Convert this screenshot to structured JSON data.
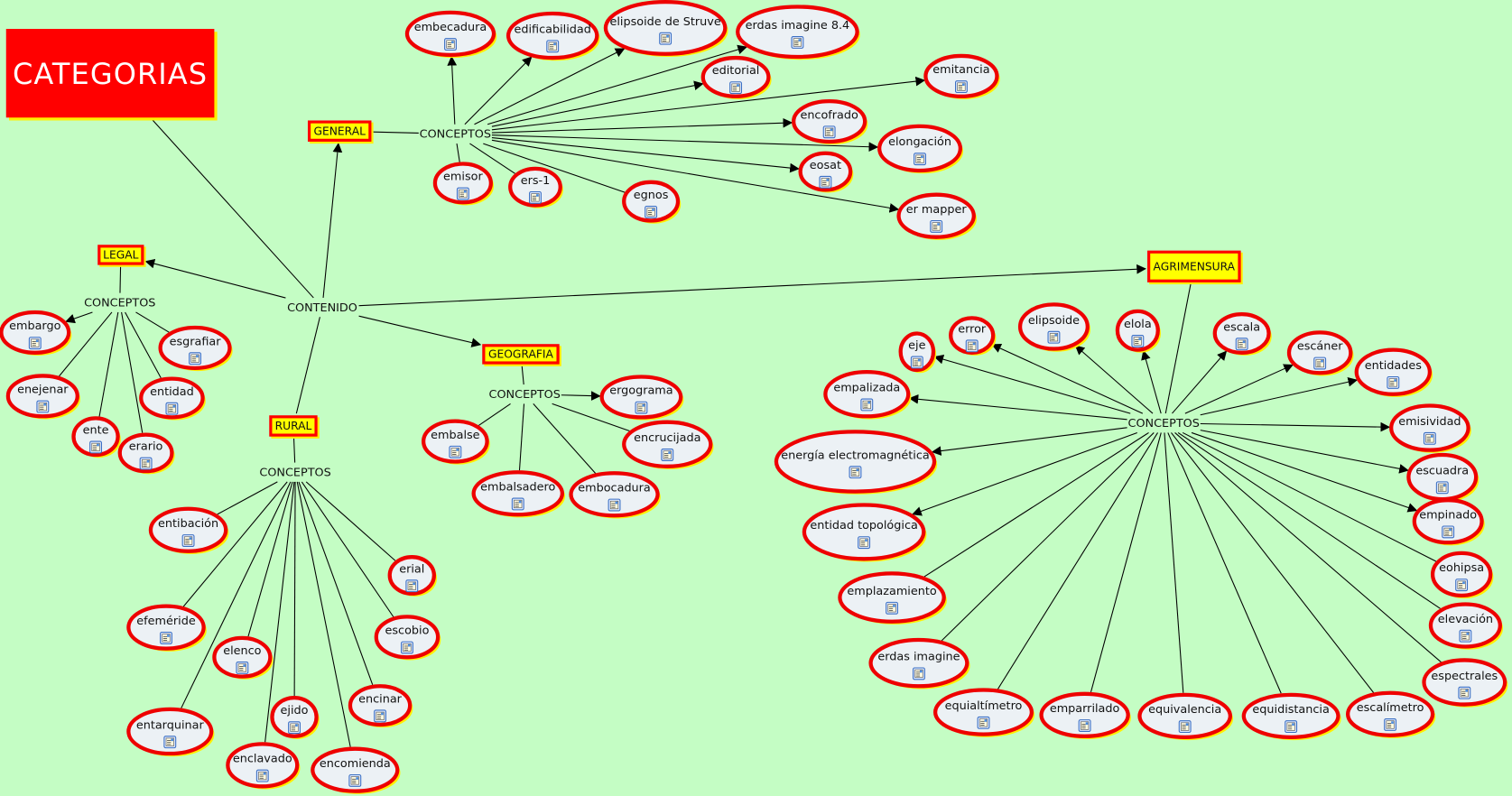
{
  "title": "CATEGORIAS",
  "hub_phrase": "CONTENIDO",
  "colors": {
    "background": "#c4fdc4",
    "title_box": "#ff0000",
    "node_border": "#ee0000",
    "node_fill": "#ecf1f5",
    "shadow": "#ffee00",
    "category_fill": "#ffff00"
  },
  "node_icon": "document-resource-icon",
  "categories": [
    {
      "key": "general",
      "label": "GENERAL",
      "phrase": "CONCEPTOS",
      "hub_arrow": true,
      "concepts": [
        {
          "label": "embecadura",
          "arrow": true
        },
        {
          "label": "edificabilidad",
          "arrow": true
        },
        {
          "label": "elipsoide de Struve",
          "arrow": true
        },
        {
          "label": "erdas imagine 8.4",
          "arrow": true
        },
        {
          "label": "editorial",
          "arrow": true
        },
        {
          "label": "emitancia",
          "arrow": true
        },
        {
          "label": "encofrado",
          "arrow": true
        },
        {
          "label": "elongación",
          "arrow": true
        },
        {
          "label": "eosat",
          "arrow": true
        },
        {
          "label": "er mapper",
          "arrow": true
        },
        {
          "label": "emisor",
          "arrow": false
        },
        {
          "label": "ers-1",
          "arrow": false
        },
        {
          "label": "egnos",
          "arrow": false
        }
      ]
    },
    {
      "key": "legal",
      "label": "LEGAL",
      "phrase": "CONCEPTOS",
      "hub_arrow": true,
      "concepts": [
        {
          "label": "embargo",
          "arrow": true
        },
        {
          "label": "esgrafiar",
          "arrow": false
        },
        {
          "label": "enejenar",
          "arrow": false
        },
        {
          "label": "entidad",
          "arrow": false
        },
        {
          "label": "ente",
          "arrow": false
        },
        {
          "label": "erario",
          "arrow": false
        }
      ]
    },
    {
      "key": "geografia",
      "label": "GEOGRAFIA",
      "phrase": "CONCEPTOS",
      "hub_arrow": true,
      "concepts": [
        {
          "label": "ergograma",
          "arrow": true
        },
        {
          "label": "embalse",
          "arrow": false
        },
        {
          "label": "encrucijada",
          "arrow": false
        },
        {
          "label": "embalsadero",
          "arrow": false
        },
        {
          "label": "embocadura",
          "arrow": false
        }
      ]
    },
    {
      "key": "rural",
      "label": "RURAL",
      "phrase": "CONCEPTOS",
      "hub_arrow": false,
      "concepts": [
        {
          "label": "entibación",
          "arrow": false
        },
        {
          "label": "erial",
          "arrow": false
        },
        {
          "label": "efeméride",
          "arrow": false
        },
        {
          "label": "escobio",
          "arrow": false
        },
        {
          "label": "elenco",
          "arrow": false
        },
        {
          "label": "encinar",
          "arrow": false
        },
        {
          "label": "entarquinar",
          "arrow": false
        },
        {
          "label": "ejido",
          "arrow": false
        },
        {
          "label": "enclavado",
          "arrow": false
        },
        {
          "label": "encomienda",
          "arrow": false
        }
      ]
    },
    {
      "key": "agrimensura",
      "label": "AGRIMENSURA",
      "phrase": "CONCEPTOS",
      "hub_arrow": true,
      "concepts": [
        {
          "label": "eje",
          "arrow": true
        },
        {
          "label": "error",
          "arrow": true
        },
        {
          "label": "elipsoide",
          "arrow": true
        },
        {
          "label": "elola",
          "arrow": true
        },
        {
          "label": "escala",
          "arrow": true
        },
        {
          "label": "escáner",
          "arrow": true
        },
        {
          "label": "entidades",
          "arrow": true
        },
        {
          "label": "empalizada",
          "arrow": true
        },
        {
          "label": "emisividad",
          "arrow": true
        },
        {
          "label": "energía electromagnética",
          "arrow": true
        },
        {
          "label": "escuadra",
          "arrow": true
        },
        {
          "label": "entidad topológica",
          "arrow": true
        },
        {
          "label": "empinado",
          "arrow": true
        },
        {
          "label": "emplazamiento",
          "arrow": false
        },
        {
          "label": "eohipsa",
          "arrow": false
        },
        {
          "label": "elevación",
          "arrow": false
        },
        {
          "label": "erdas imagine",
          "arrow": false
        },
        {
          "label": "espectrales",
          "arrow": false
        },
        {
          "label": "equialtímetro",
          "arrow": false
        },
        {
          "label": "emparrilado",
          "arrow": false
        },
        {
          "label": "equivalencia",
          "arrow": false
        },
        {
          "label": "equidistancia",
          "arrow": false
        },
        {
          "label": "escalímetro",
          "arrow": false
        }
      ]
    }
  ]
}
